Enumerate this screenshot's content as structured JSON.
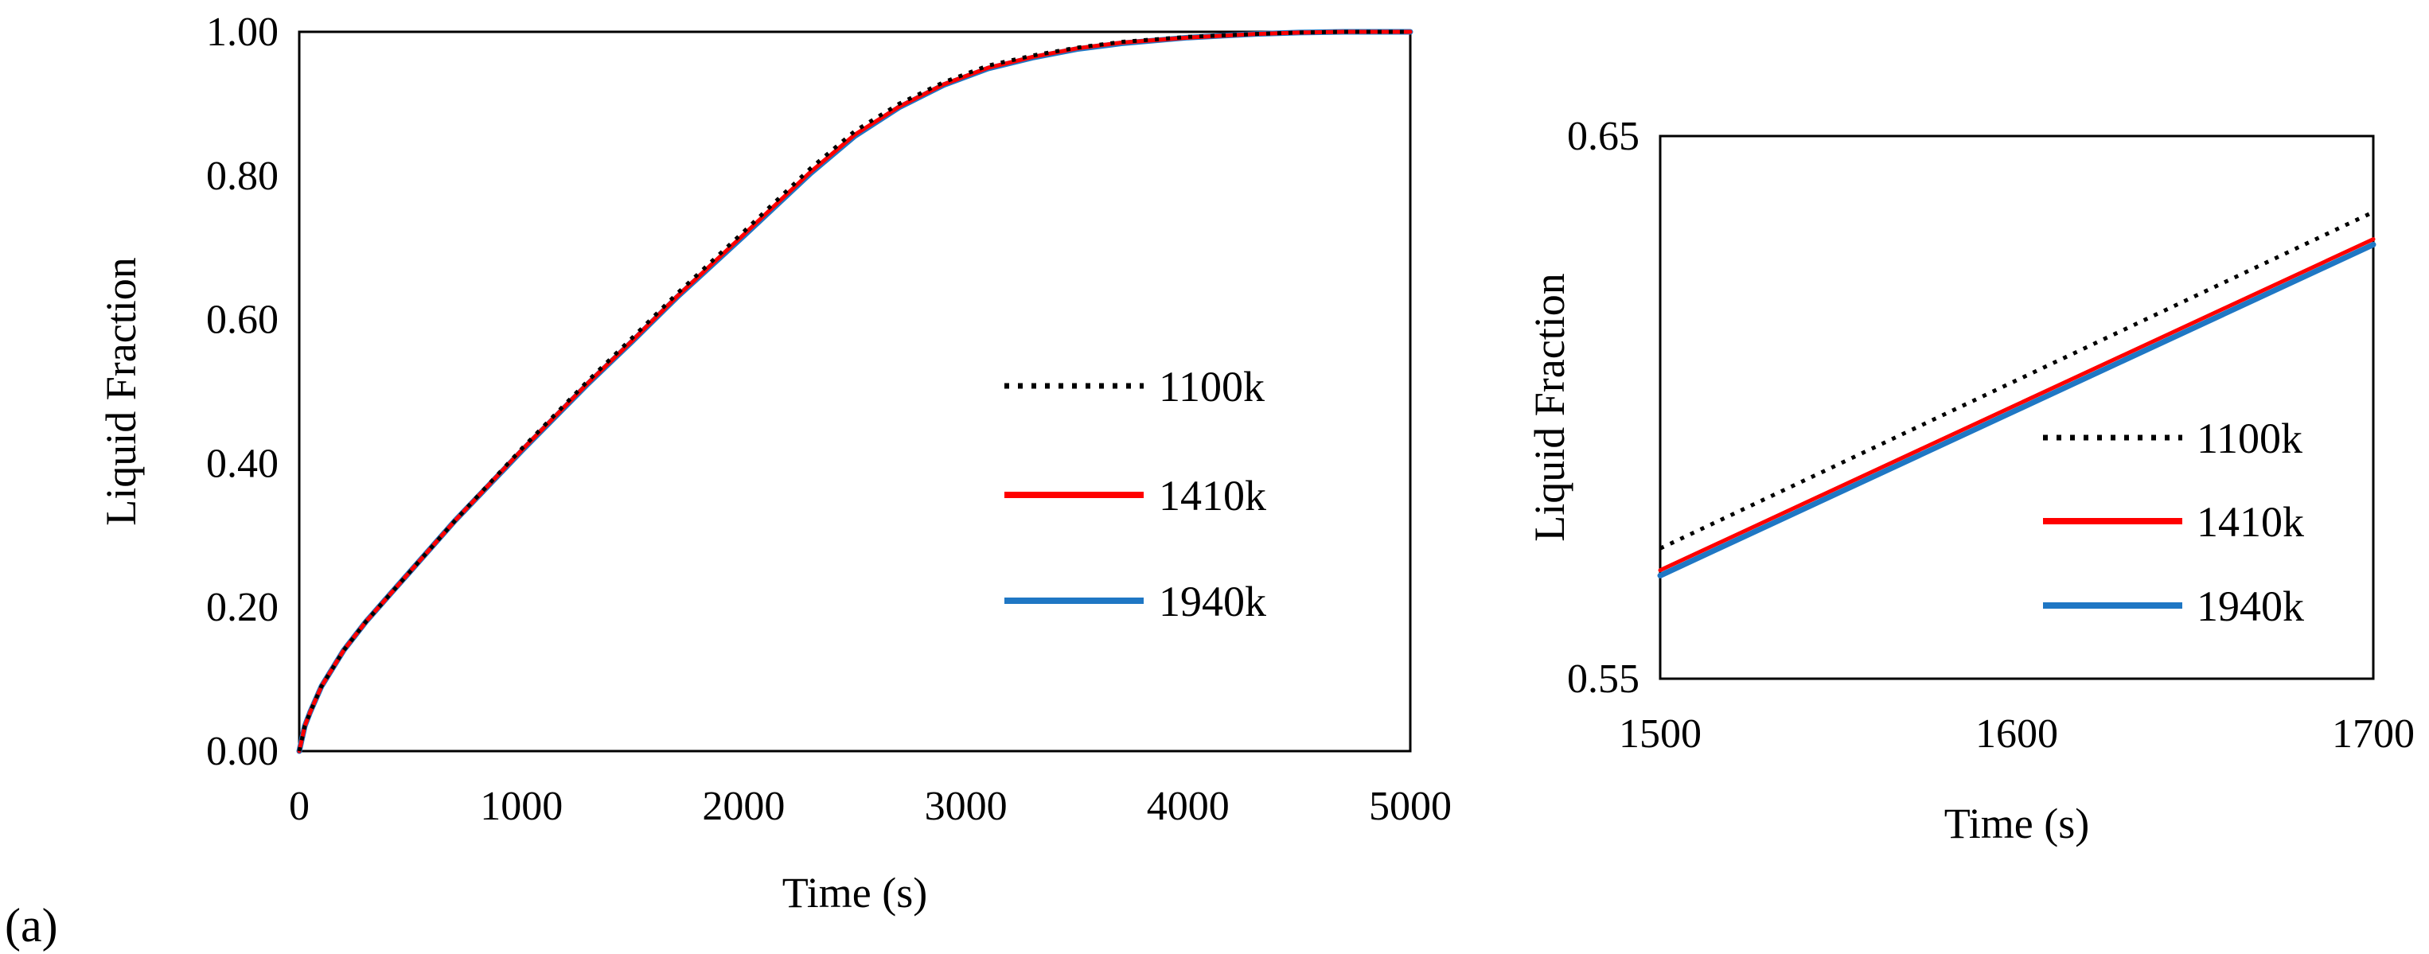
{
  "figure_label": "(a)",
  "chart_data": [
    {
      "type": "line",
      "title": "",
      "xlabel": "Time (s)",
      "ylabel": "Liquid Fraction",
      "xlim": [
        0,
        5000
      ],
      "ylim": [
        0,
        1
      ],
      "x_ticks": [
        "0",
        "1000",
        "2000",
        "3000",
        "4000",
        "5000"
      ],
      "y_ticks": [
        "0.00",
        "0.20",
        "0.40",
        "0.60",
        "0.80",
        "1.00"
      ],
      "legend_position": "center-right",
      "series": [
        {
          "name": "1100k",
          "color": "#000000",
          "style": "dotted",
          "x": [
            0,
            25,
            50,
            100,
            200,
            300,
            400,
            500,
            700,
            1000,
            1300,
            1500,
            1700,
            2000,
            2300,
            2500,
            2700,
            2900,
            3100,
            3300,
            3500,
            3700,
            4000,
            4300,
            4500,
            4700,
            5000
          ],
          "y": [
            0,
            0.035,
            0.055,
            0.09,
            0.14,
            0.18,
            0.215,
            0.25,
            0.32,
            0.42,
            0.515,
            0.575,
            0.636,
            0.722,
            0.81,
            0.862,
            0.9,
            0.93,
            0.953,
            0.967,
            0.978,
            0.986,
            0.993,
            0.997,
            0.999,
            1.0,
            1.0
          ]
        },
        {
          "name": "1410k",
          "color": "#ff0000",
          "style": "solid",
          "x": [
            0,
            25,
            50,
            100,
            200,
            300,
            400,
            500,
            700,
            1000,
            1300,
            1500,
            1700,
            2000,
            2300,
            2500,
            2700,
            2900,
            3100,
            3300,
            3500,
            3700,
            4000,
            4300,
            4500,
            4700,
            5000
          ],
          "y": [
            0,
            0.035,
            0.055,
            0.09,
            0.14,
            0.18,
            0.215,
            0.25,
            0.32,
            0.418,
            0.512,
            0.571,
            0.632,
            0.718,
            0.805,
            0.857,
            0.896,
            0.927,
            0.95,
            0.965,
            0.977,
            0.985,
            0.992,
            0.997,
            0.999,
            1.0,
            1.0
          ]
        },
        {
          "name": "1940k",
          "color": "#1f77c4",
          "style": "solid",
          "x": [
            0,
            25,
            50,
            100,
            200,
            300,
            400,
            500,
            700,
            1000,
            1300,
            1500,
            1700,
            2000,
            2300,
            2500,
            2700,
            2900,
            3100,
            3300,
            3500,
            3700,
            4000,
            4300,
            4500,
            4700,
            5000
          ],
          "y": [
            0,
            0.035,
            0.055,
            0.09,
            0.14,
            0.18,
            0.215,
            0.25,
            0.32,
            0.417,
            0.511,
            0.57,
            0.631,
            0.716,
            0.803,
            0.855,
            0.895,
            0.926,
            0.949,
            0.964,
            0.976,
            0.984,
            0.992,
            0.997,
            0.999,
            1.0,
            1.0
          ]
        }
      ]
    },
    {
      "type": "line",
      "title": "",
      "xlabel": "Time (s)",
      "ylabel": "Liquid Fraction",
      "xlim": [
        1500,
        1700
      ],
      "ylim": [
        0.55,
        0.65
      ],
      "x_ticks": [
        "1500",
        "1600",
        "1700"
      ],
      "y_ticks": [
        "0.55",
        "0.65"
      ],
      "legend_position": "lower-right",
      "series": [
        {
          "name": "1100k",
          "color": "#000000",
          "style": "dotted",
          "x": [
            1500,
            1700
          ],
          "y": [
            0.574,
            0.636
          ]
        },
        {
          "name": "1410k",
          "color": "#ff0000",
          "style": "solid",
          "x": [
            1500,
            1700
          ],
          "y": [
            0.57,
            0.631
          ]
        },
        {
          "name": "1940k",
          "color": "#1f77c4",
          "style": "solid",
          "x": [
            1500,
            1700
          ],
          "y": [
            0.569,
            0.63
          ]
        }
      ]
    }
  ]
}
